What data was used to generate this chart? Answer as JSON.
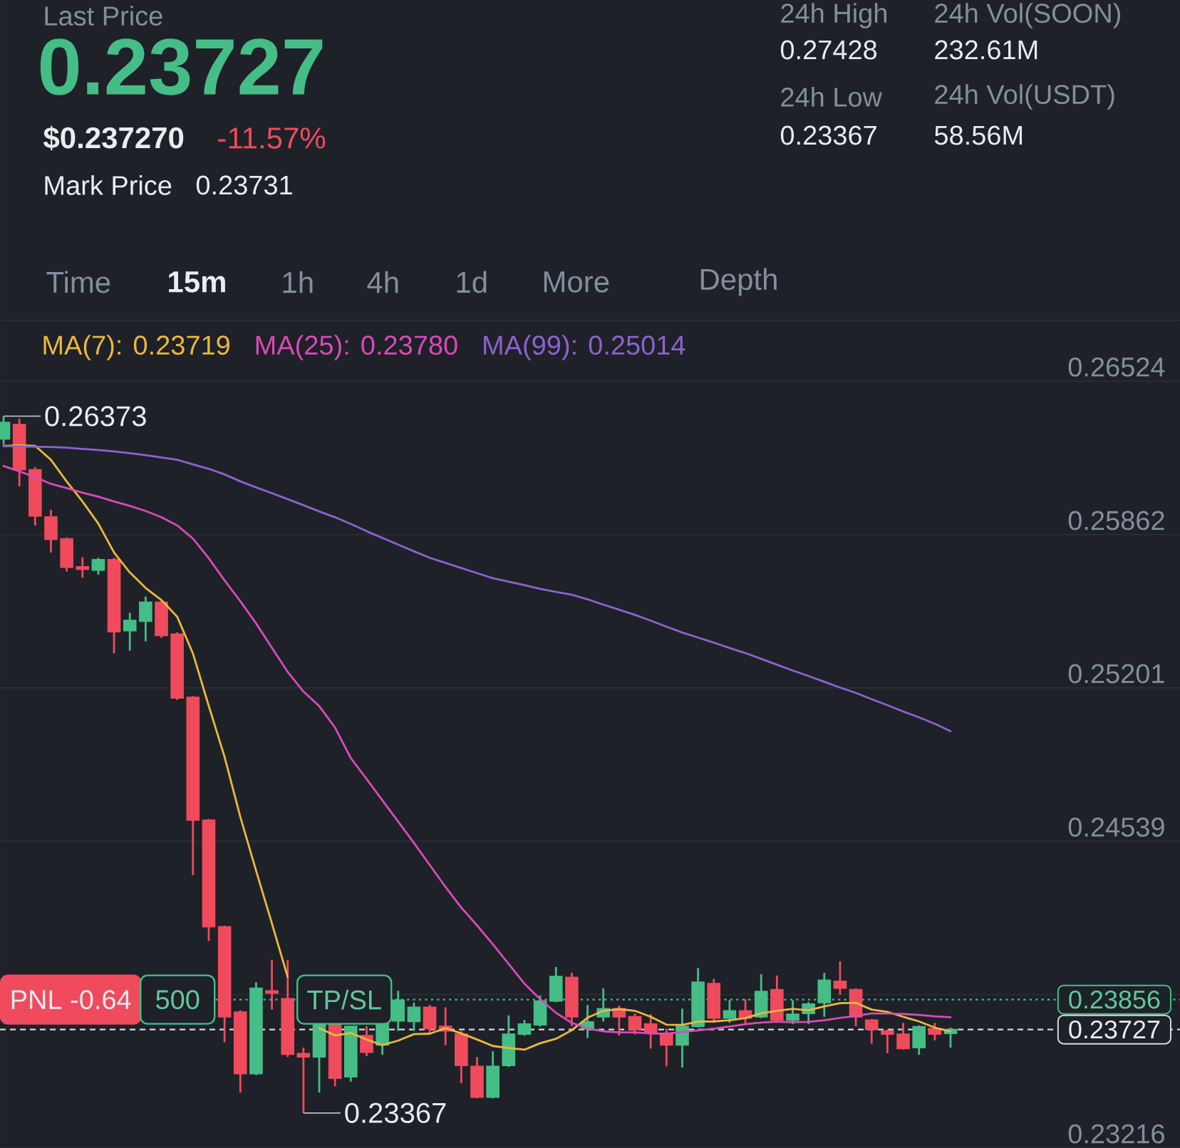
{
  "chart_data": {
    "type": "candlestick",
    "categories": [
      null,
      null,
      null,
      null,
      null,
      null,
      null,
      null,
      null,
      null,
      null,
      null,
      null,
      null,
      null,
      null,
      null,
      null,
      null,
      null,
      null,
      null,
      null,
      null,
      null,
      null,
      null,
      null,
      null,
      null,
      null,
      null,
      null,
      null,
      null,
      null,
      null,
      null,
      null,
      null,
      null,
      null,
      null,
      null,
      null,
      null,
      null,
      null,
      null,
      null,
      null,
      null,
      null,
      null,
      null,
      null,
      null,
      null,
      null,
      null,
      null
    ],
    "ohlc": [
      [
        0.26275,
        0.26373,
        0.2625,
        0.26346
      ],
      [
        0.26337,
        0.26363,
        0.2607,
        0.26142
      ],
      [
        0.26142,
        0.26153,
        0.25901,
        0.25942
      ],
      [
        0.25938,
        0.25969,
        0.25785,
        0.25842
      ],
      [
        0.25844,
        0.2585,
        0.25703,
        0.25721
      ],
      [
        0.25723,
        0.25764,
        0.25676,
        0.25713
      ],
      [
        0.25709,
        0.25762,
        0.25689,
        0.25754
      ],
      [
        0.25754,
        0.25762,
        0.2535,
        0.25443
      ],
      [
        0.25448,
        0.25525,
        0.25362,
        0.25492
      ],
      [
        0.25488,
        0.25595,
        0.25402,
        0.2557
      ],
      [
        0.2557,
        0.2558,
        0.25417,
        0.25427
      ],
      [
        0.25433,
        0.2544,
        0.25149,
        0.25157
      ],
      [
        0.2516,
        0.25166,
        0.24393,
        0.2463
      ],
      [
        0.2463,
        0.24636,
        0.24109,
        0.2417
      ],
      [
        0.2417,
        0.24175,
        0.23672,
        0.23782
      ],
      [
        0.23802,
        0.2381,
        0.23455,
        0.23537
      ],
      [
        0.23537,
        0.23931,
        0.2353,
        0.23905
      ],
      [
        0.23894,
        0.24027,
        0.23813,
        0.23884
      ],
      [
        0.2386,
        0.24027,
        0.23609,
        0.2362
      ],
      [
        0.23623,
        0.23649,
        0.23367,
        0.23609
      ],
      [
        0.23609,
        0.23751,
        0.23455,
        0.23751
      ],
      [
        0.23751,
        0.23751,
        0.23482,
        0.23517
      ],
      [
        0.23523,
        0.23741,
        0.23502,
        0.23741
      ],
      [
        0.23701,
        0.23741,
        0.23612,
        0.23629
      ],
      [
        0.2366,
        0.23751,
        0.23618,
        0.23751
      ],
      [
        0.23764,
        0.23894,
        0.23721,
        0.23854
      ],
      [
        0.23762,
        0.23843,
        0.23721,
        0.23823
      ],
      [
        0.23823,
        0.23833,
        0.23706,
        0.23731
      ],
      [
        0.23741,
        0.23823,
        0.2366,
        0.23721
      ],
      [
        0.23707,
        0.2372,
        0.23496,
        0.23572
      ],
      [
        0.23568,
        0.23609,
        0.2343,
        0.23435
      ],
      [
        0.23435,
        0.23633,
        0.2343,
        0.23568
      ],
      [
        0.23572,
        0.23788,
        0.23565,
        0.23707
      ],
      [
        0.23707,
        0.23768,
        0.237,
        0.23751
      ],
      [
        0.23747,
        0.23874,
        0.2374,
        0.2385
      ],
      [
        0.2385,
        0.23997,
        0.23845,
        0.23956
      ],
      [
        0.23952,
        0.23972,
        0.23741,
        0.23782
      ],
      [
        0.2373,
        0.23833,
        0.2369,
        0.2376
      ],
      [
        0.23782,
        0.23905,
        0.23762,
        0.23817
      ],
      [
        0.23817,
        0.2383,
        0.23701,
        0.23782
      ],
      [
        0.23782,
        0.23796,
        0.23706,
        0.23727
      ],
      [
        0.23751,
        0.23793,
        0.23645,
        0.23714
      ],
      [
        0.23707,
        0.23731,
        0.23568,
        0.2366
      ],
      [
        0.2366,
        0.23817,
        0.23563,
        0.23741
      ],
      [
        0.23741,
        0.23992,
        0.23735,
        0.23931
      ],
      [
        0.23925,
        0.23946,
        0.23756,
        0.23776
      ],
      [
        0.23776,
        0.23854,
        0.23756,
        0.23808
      ],
      [
        0.23808,
        0.23858,
        0.23751,
        0.23776
      ],
      [
        0.23782,
        0.23966,
        0.23776,
        0.23891
      ],
      [
        0.23899,
        0.2396,
        0.2376,
        0.23768
      ],
      [
        0.23768,
        0.23854,
        0.23751,
        0.23793
      ],
      [
        0.23796,
        0.23845,
        0.23751,
        0.23837
      ],
      [
        0.23843,
        0.23972,
        0.23782,
        0.2394
      ],
      [
        0.23935,
        0.24021,
        0.23877,
        0.23905
      ],
      [
        0.23899,
        0.23905,
        0.23741,
        0.23782
      ],
      [
        0.23768,
        0.23772,
        0.23666,
        0.23727
      ],
      [
        0.23721,
        0.23727,
        0.23625,
        0.23707
      ],
      [
        0.23707,
        0.23756,
        0.2364,
        0.23645
      ],
      [
        0.23649,
        0.23745,
        0.23618,
        0.23739
      ],
      [
        0.23731,
        0.23756,
        0.2368,
        0.23707
      ],
      [
        0.2371,
        0.23735,
        0.23649,
        0.23727
      ]
    ],
    "colors": [
      "#45bd87",
      "#ef4b5c",
      "#ef4b5c",
      "#ef4b5c",
      "#ef4b5c",
      "#ef4b5c",
      "#45bd87",
      "#ef4b5c",
      "#45bd87",
      "#45bd87",
      "#ef4b5c",
      "#ef4b5c",
      "#ef4b5c",
      "#ef4b5c",
      "#ef4b5c",
      "#ef4b5c",
      "#45bd87",
      "#ef4b5c",
      "#ef4b5c",
      "#ef4b5c",
      "#45bd87",
      "#ef4b5c",
      "#45bd87",
      "#ef4b5c",
      "#45bd87",
      "#45bd87",
      "#45bd87",
      "#ef4b5c",
      "#ef4b5c",
      "#ef4b5c",
      "#ef4b5c",
      "#45bd87",
      "#45bd87",
      "#45bd87",
      "#45bd87",
      "#45bd87",
      "#ef4b5c",
      "#45bd87",
      "#45bd87",
      "#ef4b5c",
      "#ef4b5c",
      "#ef4b5c",
      "#ef4b5c",
      "#45bd87",
      "#45bd87",
      "#ef4b5c",
      "#45bd87",
      "#ef4b5c",
      "#45bd87",
      "#ef4b5c",
      "#45bd87",
      "#45bd87",
      "#45bd87",
      "#ef4b5c",
      "#ef4b5c",
      "#ef4b5c",
      "#ef4b5c",
      "#ef4b5c",
      "#45bd87",
      "#ef4b5c",
      "#45bd87"
    ],
    "series": [
      {
        "type": "line",
        "name": "MA(7): 0.23719",
        "color": "#eab83c",
        "values": [
          0.26245,
          0.26248,
          0.26245,
          0.26185,
          0.26091,
          0.26005,
          0.2591,
          0.25785,
          0.25699,
          0.25632,
          0.2558,
          0.25508,
          0.25349,
          0.25123,
          0.24904,
          0.24644,
          0.24412,
          0.24185,
          0.23954,
          null,
          0.23733,
          0.23702,
          0.23712,
          0.23684,
          0.2366,
          0.23679,
          0.23707,
          0.23709,
          0.23733,
          0.2371,
          0.23684,
          0.23656,
          0.23647,
          0.2364,
          0.23668,
          0.23687,
          0.23724,
          0.23778,
          0.23808,
          0.23815,
          0.23808,
          0.23782,
          0.23748,
          0.23747,
          0.23761,
          0.23762,
          0.23767,
          0.23776,
          0.23797,
          0.23808,
          0.23816,
          0.2381,
          0.23827,
          0.23841,
          0.23842,
          0.23813,
          0.23803,
          0.23782,
          0.23762,
          0.23735,
          0.23719
        ]
      },
      {
        "type": "line",
        "name": "MA(25): 0.23780",
        "color": "#d94ab8",
        "values": [
          0.26158,
          0.26135,
          0.2611,
          0.26081,
          0.26063,
          0.26043,
          0.26026,
          0.26005,
          0.25986,
          0.25964,
          0.25937,
          0.25902,
          0.25845,
          0.2576,
          0.25665,
          0.25575,
          0.25479,
          0.25374,
          0.2527,
          0.25185,
          0.25122,
          0.2503,
          0.24898,
          0.24808,
          0.24716,
          0.24624,
          0.24532,
          0.24437,
          0.24342,
          0.24253,
          0.24176,
          0.24095,
          0.2401,
          0.23925,
          0.23858,
          0.23799,
          0.23756,
          0.23732,
          0.23719,
          0.23715,
          0.23715,
          0.2371,
          0.23709,
          0.23716,
          0.23723,
          0.23731,
          0.2374,
          0.2375,
          0.23757,
          0.23761,
          0.23759,
          0.2376,
          0.23767,
          0.23777,
          0.23786,
          0.23796,
          0.23796,
          0.23794,
          0.2379,
          0.23784,
          0.2378
        ]
      },
      {
        "type": "line",
        "name": "MA(99): 0.25014",
        "color": "#8d62d0",
        "values": [
          0.26244,
          0.26243,
          0.26241,
          0.2624,
          0.26237,
          0.26232,
          0.26227,
          0.26221,
          0.26213,
          0.26205,
          0.26195,
          0.26185,
          0.26165,
          0.26146,
          0.26122,
          0.26092,
          0.26066,
          0.26041,
          0.26015,
          0.25989,
          0.25962,
          0.25937,
          0.25908,
          0.25877,
          0.25848,
          0.25819,
          0.2579,
          0.25762,
          0.2574,
          0.25718,
          0.25696,
          0.25674,
          0.25659,
          0.25644,
          0.25628,
          0.25615,
          0.25603,
          0.25583,
          0.2556,
          0.25538,
          0.25516,
          0.25491,
          0.25465,
          0.2544,
          0.25418,
          0.25396,
          0.25373,
          0.25351,
          0.25326,
          0.25301,
          0.25276,
          0.25252,
          0.25227,
          0.25202,
          0.25179,
          0.25152,
          0.25126,
          0.25099,
          0.25074,
          0.25046,
          0.25014
        ]
      }
    ],
    "ylim": [
      0.23216,
      0.26786
    ],
    "yticks": [
      0.23216,
      {
        "value": 0.23878,
        "label": null
      },
      0.24539,
      0.25201,
      0.25862,
      0.26524
    ],
    "grid": "y",
    "legend": "top left",
    "tick_labels": "y",
    "ref_lines": [
      {
        "axis": "y",
        "value": 0.23856,
        "color": "#45bd87",
        "line_style": "dotted"
      },
      {
        "axis": "y",
        "value": 0.23727,
        "color": "#d5d8dc",
        "line_style": "dashed"
      }
    ],
    "annotations": [
      "Last Price",
      "0.23727",
      "$0.237270",
      "-11.57%",
      "Mark Price",
      "0.23731",
      "24h High",
      "0.27428",
      "24h Low",
      "0.23367",
      "24h Vol(SOON)",
      "232.61M",
      "24h Vol(USDT)",
      "58.56M",
      "Time",
      "15m",
      "1h",
      "4h",
      "1d",
      "More",
      "Depth",
      "0.26373",
      "0.23367",
      {
        "text": "PNL -0.64",
        "y": 0.23856
      },
      {
        "text": "500",
        "y": 0.23856
      },
      {
        "text": "TP/SL",
        "y": 0.23856
      },
      {
        "text": "0.23856",
        "y": 0.23856
      },
      {
        "text": "0.23727",
        "y": 0.23727
      }
    ]
  }
}
